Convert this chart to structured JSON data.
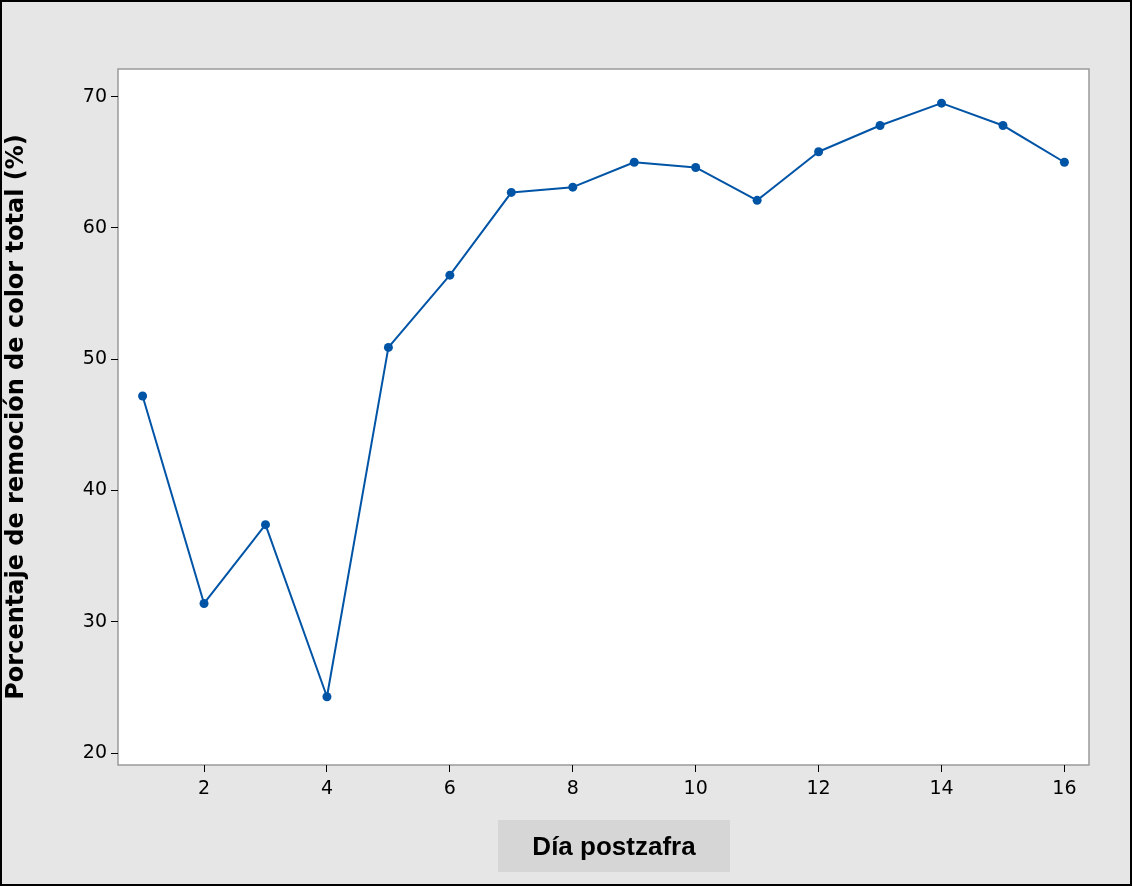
{
  "chart_data": {
    "type": "line",
    "xlabel": "Día postzafra",
    "ylabel": "Porcentaje de remoción de color total (%)",
    "x": [
      1,
      2,
      3,
      4,
      5,
      6,
      7,
      8,
      9,
      10,
      11,
      12,
      13,
      14,
      15,
      16
    ],
    "series": [
      {
        "color": "#0054a6",
        "values": [
          47.2,
          31.4,
          37.4,
          24.3,
          50.9,
          56.4,
          62.7,
          63.1,
          65.0,
          64.6,
          62.1,
          65.8,
          67.8,
          69.5,
          67.8,
          65.0
        ]
      }
    ],
    "xlim": [
      0.6,
      16.4
    ],
    "xticks": [
      2,
      4,
      6,
      8,
      10,
      12,
      14,
      16
    ],
    "ylim": [
      19.1,
      72.1
    ],
    "yticks": [
      20,
      30,
      40,
      50,
      60,
      70
    ],
    "grid": false,
    "legend": false,
    "marker": "circle",
    "line_style": "solid"
  }
}
